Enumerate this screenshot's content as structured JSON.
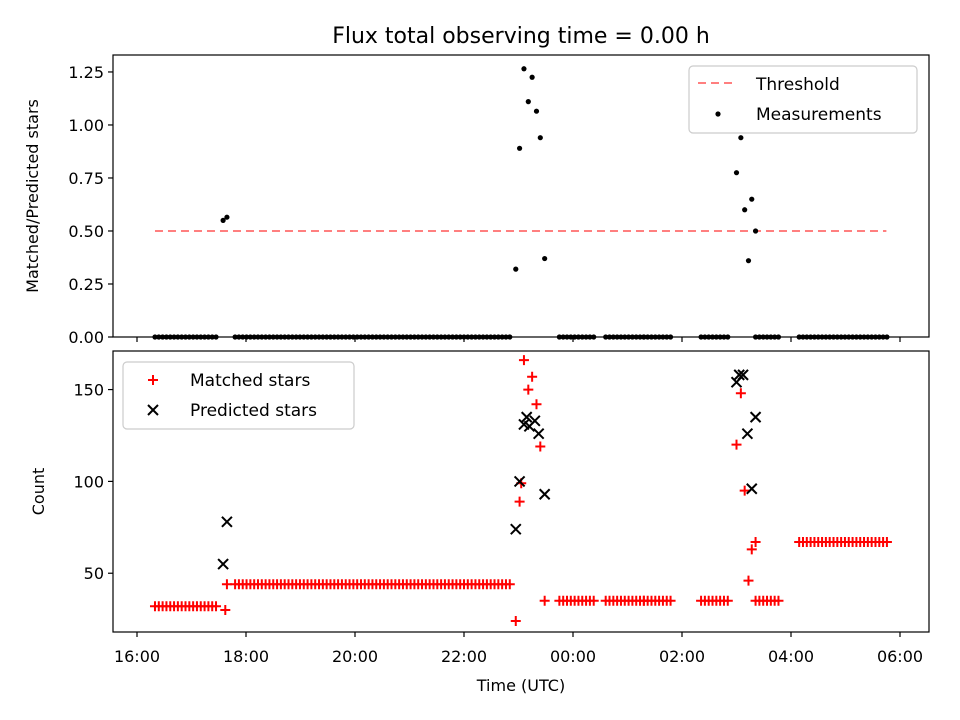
{
  "chart_data": {
    "title": "Flux total observing time = 0.00 h",
    "xlabel": "Time (UTC)",
    "x_unit": "hours (UTC, continuing past midnight)",
    "x_ticks": [
      "16:00",
      "18:00",
      "20:00",
      "22:00",
      "00:00",
      "02:00",
      "04:00",
      "06:00"
    ],
    "panels": [
      {
        "type": "scatter",
        "ylabel": "Matched/Predicted stars",
        "ylim": [
          0,
          1.33
        ],
        "y_ticks": [
          "0.00",
          "0.25",
          "0.50",
          "0.75",
          "1.00",
          "1.25"
        ],
        "legend_position": "top-right",
        "threshold": {
          "name": "Threshold",
          "y": 0.5,
          "x_range": [
            16.33,
            29.75
          ],
          "color": "#ff7f7f",
          "style": "dashed"
        },
        "series": [
          {
            "name": "Measurements",
            "color": "#000000",
            "marker": "dot",
            "segments_zero": [
              [
                16.33,
                17.5
              ],
              [
                17.8,
                22.9
              ],
              [
                23.75,
                24.4
              ],
              [
                24.6,
                25.8
              ],
              [
                26.35,
                26.9
              ],
              [
                27.35,
                27.8
              ],
              [
                28.15,
                29.8
              ]
            ],
            "zero_isolated": [
              25.3
            ],
            "points": [
              [
                17.58,
                0.55
              ],
              [
                17.65,
                0.565
              ],
              [
                22.95,
                0.32
              ],
              [
                23.02,
                0.89
              ],
              [
                23.1,
                1.265
              ],
              [
                23.18,
                1.11
              ],
              [
                23.25,
                1.225
              ],
              [
                23.33,
                1.065
              ],
              [
                23.4,
                0.94
              ],
              [
                23.48,
                0.37
              ],
              [
                27.0,
                0.775
              ],
              [
                27.08,
                0.94
              ],
              [
                27.15,
                0.6
              ],
              [
                27.22,
                0.36
              ],
              [
                27.28,
                0.65
              ],
              [
                27.35,
                0.5
              ]
            ]
          }
        ]
      },
      {
        "type": "scatter",
        "ylabel": "Count",
        "ylim": [
          18,
          171
        ],
        "y_ticks": [
          "50",
          "100",
          "150"
        ],
        "legend_position": "top-left",
        "series": [
          {
            "name": "Matched stars",
            "color": "#ff0000",
            "marker": "plus",
            "runs": [
              [
                16.33,
                17.5,
                32
              ],
              [
                17.8,
                22.9,
                44
              ],
              [
                23.75,
                24.4,
                35
              ],
              [
                24.6,
                25.8,
                35
              ],
              [
                26.35,
                26.9,
                35
              ],
              [
                27.35,
                27.8,
                35
              ],
              [
                28.15,
                29.8,
                67
              ]
            ],
            "isolated": [
              [
                25.3,
                35
              ],
              [
                17.62,
                30
              ],
              [
                17.65,
                44
              ],
              [
                22.95,
                24
              ],
              [
                23.02,
                89
              ],
              [
                23.05,
                99
              ],
              [
                23.1,
                166
              ],
              [
                23.18,
                150
              ],
              [
                23.25,
                157
              ],
              [
                23.33,
                142
              ],
              [
                23.4,
                119
              ],
              [
                23.48,
                35
              ],
              [
                27.0,
                120
              ],
              [
                27.08,
                148
              ],
              [
                27.15,
                95
              ],
              [
                27.22,
                46
              ],
              [
                27.28,
                63
              ],
              [
                27.35,
                67
              ]
            ]
          },
          {
            "name": "Predicted stars",
            "color": "#000000",
            "marker": "x",
            "points": [
              [
                17.58,
                55
              ],
              [
                17.65,
                78
              ],
              [
                22.95,
                74
              ],
              [
                23.02,
                100
              ],
              [
                23.1,
                131
              ],
              [
                23.15,
                135
              ],
              [
                23.2,
                130
              ],
              [
                23.3,
                133
              ],
              [
                23.37,
                126
              ],
              [
                23.48,
                93
              ],
              [
                27.0,
                154
              ],
              [
                27.05,
                158
              ],
              [
                27.12,
                158
              ],
              [
                27.2,
                126
              ],
              [
                27.28,
                96
              ],
              [
                27.35,
                135
              ]
            ]
          }
        ]
      }
    ]
  }
}
